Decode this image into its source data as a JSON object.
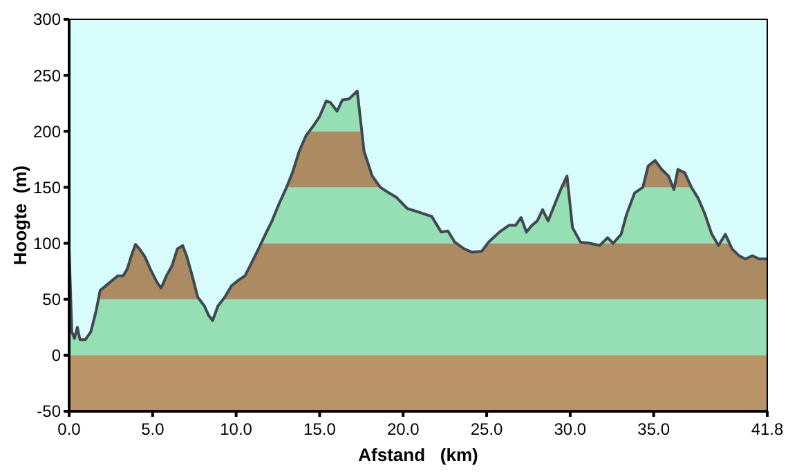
{
  "chart_data": {
    "type": "area",
    "xlabel": "Afstand   (km)",
    "ylabel": "Hoogte  (m)",
    "xlim": [
      0,
      41.8
    ],
    "ylim": [
      -50,
      300
    ],
    "xticks": [
      {
        "value": 0,
        "label": "0.0"
      },
      {
        "value": 5,
        "label": "5.0"
      },
      {
        "value": 10,
        "label": "10.0"
      },
      {
        "value": 15,
        "label": "15.0"
      },
      {
        "value": 20,
        "label": "20.0"
      },
      {
        "value": 25,
        "label": "25.0"
      },
      {
        "value": 30,
        "label": "30.0"
      },
      {
        "value": 35,
        "label": "35.0"
      },
      {
        "value": 41.8,
        "label": "41.8"
      }
    ],
    "yticks": [
      -50,
      0,
      50,
      100,
      150,
      200,
      250,
      300
    ],
    "grid": false,
    "bands": [
      {
        "axis": "y",
        "from": -50,
        "to": 0,
        "color": "#b89466"
      },
      {
        "axis": "y",
        "from": 0,
        "to": 50,
        "color": "#a0f0c0"
      },
      {
        "axis": "y",
        "from": 50,
        "to": 100,
        "color": "#b89466"
      },
      {
        "axis": "y",
        "from": 100,
        "to": 150,
        "color": "#a0f0c0"
      },
      {
        "axis": "y",
        "from": 150,
        "to": 200,
        "color": "#b89466"
      },
      {
        "axis": "y",
        "from": 200,
        "to": 250,
        "color": "#a0f0c0"
      }
    ],
    "series": [
      {
        "color": "#404850",
        "x": [
          0,
          0.16,
          0.32,
          0.49,
          0.65,
          0.97,
          1.3,
          1.62,
          1.86,
          2.11,
          2.43,
          2.92,
          3.24,
          3.48,
          3.73,
          3.97,
          4.21,
          4.54,
          4.86,
          5.27,
          5.51,
          5.83,
          6.16,
          6.48,
          6.8,
          7.05,
          7.37,
          7.7,
          8.1,
          8.34,
          8.59,
          8.91,
          9.32,
          9.72,
          10.13,
          10.53,
          10.94,
          11.34,
          11.75,
          12.15,
          12.56,
          12.96,
          13.37,
          13.77,
          14.18,
          14.58,
          14.99,
          15.39,
          15.63,
          16.04,
          16.36,
          16.77,
          17.25,
          17.66,
          18.15,
          18.63,
          19.04,
          19.6,
          20.25,
          20.9,
          21.71,
          22.28,
          22.68,
          23.09,
          23.65,
          24.14,
          24.71,
          25.11,
          25.76,
          26.33,
          26.73,
          27.06,
          27.38,
          27.71,
          28.03,
          28.35,
          28.68,
          29.16,
          29.49,
          29.81,
          30.14,
          30.62,
          31.19,
          31.76,
          32.24,
          32.57,
          33.05,
          33.38,
          33.86,
          34.35,
          34.67,
          35.08,
          35.48,
          35.89,
          36.21,
          36.45,
          36.86,
          37.26,
          37.67,
          38.07,
          38.48,
          38.88,
          39.29,
          39.69,
          40.1,
          40.5,
          40.91,
          41.31,
          41.8
        ],
        "values": [
          95,
          21,
          15,
          25,
          14,
          14,
          21,
          40,
          58,
          61,
          65,
          71,
          71,
          77,
          89,
          99,
          95,
          88,
          77,
          65,
          60,
          71,
          80,
          95,
          98,
          88,
          71,
          52,
          44,
          36,
          31,
          44,
          52,
          62,
          67,
          71,
          83,
          95,
          108,
          120,
          135,
          148,
          163,
          182,
          196,
          204,
          213,
          227,
          226,
          218,
          228,
          229,
          236,
          182,
          160,
          150,
          146,
          141,
          131,
          128,
          124,
          110,
          111,
          101,
          95,
          92,
          93,
          101,
          110,
          116,
          116,
          123,
          110,
          116,
          120,
          130,
          120,
          138,
          150,
          160,
          114,
          101,
          100,
          98,
          105,
          100,
          108,
          126,
          145,
          150,
          169,
          174,
          166,
          160,
          148,
          166,
          163,
          150,
          140,
          126,
          108,
          98,
          108,
          95,
          89,
          86,
          89,
          86,
          86
        ]
      }
    ]
  }
}
